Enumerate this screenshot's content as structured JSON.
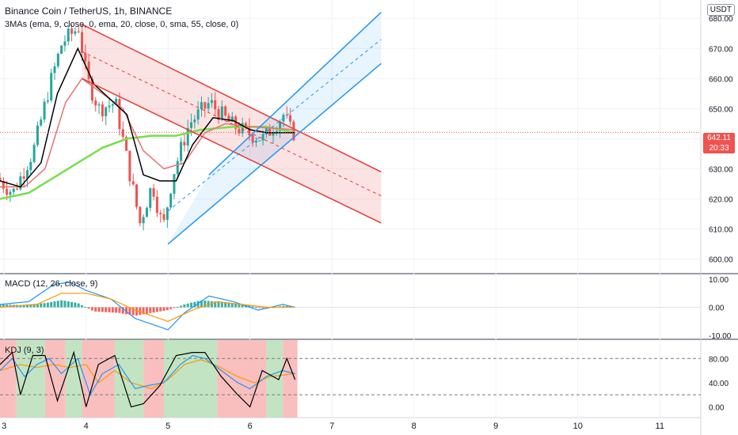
{
  "header": {
    "title": "Binance Coin / TetherUS, 1h, BINANCE",
    "ma_label": "3MAs (ema, 9, close, 0, ema, 20, close, 0, sma, 55, close, 0)",
    "currency": "USDT"
  },
  "macd": {
    "label": "MACD (12, 26, close, 9)"
  },
  "kdj": {
    "label": "KDJ (9, 3)"
  },
  "last_price": {
    "value": "642.11",
    "countdown": "20:33"
  },
  "colors": {
    "up": "#26a69a",
    "down": "#ef5350",
    "ema9": "#000000",
    "ema20": "#e57373",
    "sma55": "#76e04a",
    "channel_down": "#e53935",
    "channel_up": "#2196f3",
    "macd_line": "#2196f3",
    "signal_line": "#ff9800"
  },
  "chart_data": [
    {
      "type": "candlestick",
      "title": "Binance Coin / TetherUS, 1h, BINANCE",
      "x_ticks": [
        "3",
        "4",
        "5",
        "6",
        "7",
        "8",
        "9",
        "10",
        "11"
      ],
      "y_ticks": [
        "680.00",
        "670.00",
        "660.00",
        "650.00",
        "640.00",
        "630.00",
        "620.00",
        "610.00",
        "600.00"
      ],
      "ylim": [
        597,
        684
      ],
      "xlim": [
        2.95,
        11.5
      ],
      "last_price": 642.11,
      "ohlc_keypoints": [
        {
          "x": 2.95,
          "price": 627
        },
        {
          "x": 3.15,
          "price": 622
        },
        {
          "x": 3.4,
          "price": 636
        },
        {
          "x": 3.6,
          "price": 658
        },
        {
          "x": 3.75,
          "price": 672
        },
        {
          "x": 3.95,
          "price": 677
        },
        {
          "x": 4.05,
          "price": 660
        },
        {
          "x": 4.2,
          "price": 650
        },
        {
          "x": 4.4,
          "price": 652
        },
        {
          "x": 4.6,
          "price": 625
        },
        {
          "x": 4.7,
          "price": 612
        },
        {
          "x": 4.85,
          "price": 625
        },
        {
          "x": 4.98,
          "price": 610
        },
        {
          "x": 5.1,
          "price": 628
        },
        {
          "x": 5.3,
          "price": 645
        },
        {
          "x": 5.55,
          "price": 652
        },
        {
          "x": 5.8,
          "price": 645
        },
        {
          "x": 6.0,
          "price": 642
        },
        {
          "x": 6.2,
          "price": 640
        },
        {
          "x": 6.45,
          "price": 648
        },
        {
          "x": 6.55,
          "price": 642
        }
      ],
      "ema9": [
        [
          2.95,
          626
        ],
        [
          3.2,
          624
        ],
        [
          3.45,
          632
        ],
        [
          3.65,
          655
        ],
        [
          3.9,
          670
        ],
        [
          4.1,
          658
        ],
        [
          4.3,
          653
        ],
        [
          4.5,
          648
        ],
        [
          4.7,
          628
        ],
        [
          4.9,
          626
        ],
        [
          5.1,
          626
        ],
        [
          5.3,
          638
        ],
        [
          5.55,
          647
        ],
        [
          5.8,
          646
        ],
        [
          6.0,
          643
        ],
        [
          6.2,
          642
        ],
        [
          6.55,
          642
        ]
      ],
      "ema20": [
        [
          2.95,
          624
        ],
        [
          3.25,
          624
        ],
        [
          3.5,
          630
        ],
        [
          3.75,
          652
        ],
        [
          3.95,
          660
        ],
        [
          4.2,
          655
        ],
        [
          4.45,
          650
        ],
        [
          4.7,
          636
        ],
        [
          4.95,
          630
        ],
        [
          5.2,
          632
        ],
        [
          5.45,
          642
        ],
        [
          5.7,
          645
        ],
        [
          6.0,
          644
        ],
        [
          6.55,
          643
        ]
      ],
      "sma55": [
        [
          2.95,
          620
        ],
        [
          3.3,
          622
        ],
        [
          3.6,
          627
        ],
        [
          3.9,
          632
        ],
        [
          4.2,
          637
        ],
        [
          4.5,
          640
        ],
        [
          4.8,
          641
        ],
        [
          5.1,
          641
        ],
        [
          5.4,
          643
        ],
        [
          5.8,
          644
        ],
        [
          6.2,
          644
        ],
        [
          6.55,
          642
        ]
      ],
      "descending_channel": {
        "upper": [
          [
            3.95,
            678
          ],
          [
            7.6,
            629
          ]
        ],
        "middle": [
          [
            3.95,
            669
          ],
          [
            7.6,
            621
          ]
        ],
        "lower": [
          [
            3.95,
            660
          ],
          [
            7.6,
            612
          ]
        ]
      },
      "ascending_channel": {
        "upper": [
          [
            5.5,
            628
          ],
          [
            7.6,
            682
          ]
        ],
        "middle": [
          [
            5.0,
            616
          ],
          [
            7.6,
            673
          ]
        ],
        "lower": [
          [
            5.0,
            605
          ],
          [
            7.6,
            665
          ]
        ]
      }
    },
    {
      "type": "bar",
      "title": "MACD (12, 26, close, 9)",
      "y_ticks": [
        "10.00",
        "0.00",
        "-10.00"
      ],
      "ylim": [
        -10,
        10
      ],
      "histogram": [
        [
          2.95,
          1
        ],
        [
          3.2,
          0.8
        ],
        [
          3.5,
          1.5
        ],
        [
          3.7,
          2.5
        ],
        [
          3.9,
          1.5
        ],
        [
          4.1,
          -1.5
        ],
        [
          4.4,
          -2
        ],
        [
          4.6,
          -3
        ],
        [
          4.8,
          -2
        ],
        [
          5.0,
          -1
        ],
        [
          5.2,
          1
        ],
        [
          5.4,
          2.5
        ],
        [
          5.6,
          2
        ],
        [
          5.8,
          1.5
        ],
        [
          6.0,
          0.5
        ],
        [
          6.2,
          -0.5
        ],
        [
          6.4,
          0.5
        ],
        [
          6.55,
          0.2
        ]
      ],
      "macd_line": [
        [
          2.95,
          1
        ],
        [
          3.3,
          2
        ],
        [
          3.6,
          8
        ],
        [
          3.8,
          9
        ],
        [
          4.0,
          6
        ],
        [
          4.3,
          3
        ],
        [
          4.6,
          -4
        ],
        [
          5.0,
          -8
        ],
        [
          5.2,
          -2
        ],
        [
          5.5,
          4
        ],
        [
          5.8,
          2
        ],
        [
          6.1,
          -1
        ],
        [
          6.4,
          1
        ],
        [
          6.55,
          0
        ]
      ],
      "signal_line": [
        [
          2.95,
          0
        ],
        [
          3.4,
          1
        ],
        [
          3.7,
          5
        ],
        [
          4.0,
          5
        ],
        [
          4.3,
          3
        ],
        [
          4.6,
          -1
        ],
        [
          5.0,
          -5
        ],
        [
          5.3,
          -1
        ],
        [
          5.6,
          2
        ],
        [
          5.9,
          1
        ],
        [
          6.2,
          0
        ],
        [
          6.55,
          0
        ]
      ]
    },
    {
      "type": "line",
      "title": "KDJ (9, 3)",
      "y_ticks": [
        "80.00",
        "40.00",
        "0.00"
      ],
      "ylim": [
        -10,
        100
      ],
      "k": [
        [
          2.95,
          60
        ],
        [
          3.1,
          80
        ],
        [
          3.25,
          50
        ],
        [
          3.4,
          70
        ],
        [
          3.55,
          80
        ],
        [
          3.7,
          55
        ],
        [
          3.9,
          80
        ],
        [
          4.05,
          20
        ],
        [
          4.2,
          55
        ],
        [
          4.4,
          70
        ],
        [
          4.6,
          30
        ],
        [
          4.75,
          35
        ],
        [
          4.95,
          40
        ],
        [
          5.15,
          70
        ],
        [
          5.3,
          85
        ],
        [
          5.45,
          80
        ],
        [
          5.65,
          60
        ],
        [
          5.85,
          40
        ],
        [
          6.0,
          30
        ],
        [
          6.2,
          50
        ],
        [
          6.4,
          60
        ],
        [
          6.55,
          55
        ]
      ],
      "d": [
        [
          2.95,
          60
        ],
        [
          3.2,
          70
        ],
        [
          3.4,
          65
        ],
        [
          3.6,
          70
        ],
        [
          3.8,
          65
        ],
        [
          4.0,
          70
        ],
        [
          4.15,
          40
        ],
        [
          4.35,
          60
        ],
        [
          4.55,
          40
        ],
        [
          4.8,
          30
        ],
        [
          5.0,
          45
        ],
        [
          5.2,
          70
        ],
        [
          5.4,
          78
        ],
        [
          5.6,
          68
        ],
        [
          5.85,
          50
        ],
        [
          6.05,
          40
        ],
        [
          6.25,
          50
        ],
        [
          6.55,
          55
        ]
      ],
      "j": [
        [
          2.95,
          70
        ],
        [
          3.1,
          90
        ],
        [
          3.2,
          20
        ],
        [
          3.35,
          85
        ],
        [
          3.5,
          85
        ],
        [
          3.65,
          10
        ],
        [
          3.85,
          90
        ],
        [
          4.0,
          0
        ],
        [
          4.15,
          70
        ],
        [
          4.35,
          85
        ],
        [
          4.55,
          0
        ],
        [
          4.7,
          5
        ],
        [
          4.9,
          35
        ],
        [
          5.1,
          85
        ],
        [
          5.3,
          90
        ],
        [
          5.45,
          90
        ],
        [
          5.65,
          50
        ],
        [
          5.85,
          20
        ],
        [
          6.0,
          0
        ],
        [
          6.15,
          60
        ],
        [
          6.35,
          45
        ],
        [
          6.45,
          80
        ],
        [
          6.55,
          45
        ]
      ]
    }
  ]
}
